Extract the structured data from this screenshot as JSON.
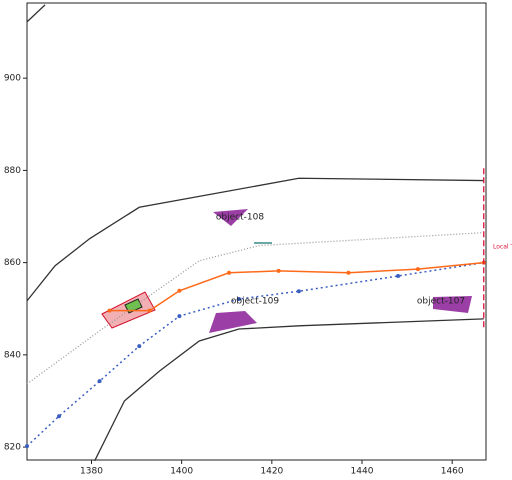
{
  "chart_data": {
    "type": "line",
    "xlim": [
      1365.7,
      1467.5
    ],
    "ylim": [
      817.2,
      916.3
    ],
    "xticks": [
      1380,
      1400,
      1420,
      1440,
      1460
    ],
    "yticks": [
      820,
      840,
      860,
      880,
      900
    ],
    "annotations": [
      "object-108",
      "object-109",
      "object-107",
      "Local T"
    ],
    "series": [
      {
        "color": "#333333",
        "dash": "none",
        "marker": false,
        "x": [
          1365.7,
          1369.7
        ],
        "values": [
          912.2,
          915.9
        ]
      },
      {
        "color": "#333333",
        "dash": "none",
        "marker": false,
        "x": [
          1365.7,
          1371.9,
          1379.6,
          1390.6,
          1426.0,
          1467.0
        ],
        "values": [
          851.7,
          859.3,
          865.2,
          872.0,
          878.3,
          877.8
        ]
      },
      {
        "color": "#333333",
        "dash": "none",
        "marker": false,
        "x": [
          1380.7,
          1387.3,
          1395.1,
          1403.9,
          1412.7,
          1426.0,
          1467.0
        ],
        "values": [
          817.0,
          830.0,
          836.5,
          843.0,
          845.6,
          846.3,
          847.8
        ]
      },
      {
        "color": "#999999",
        "dash": "1,2",
        "marker": false,
        "x": [
          1365.7,
          1381.8,
          1403.9,
          1417.2,
          1467.0
        ],
        "values": [
          833.7,
          845.2,
          860.4,
          863.7,
          866.5
        ]
      },
      {
        "color": "#3b5fc0",
        "dash": "2,3",
        "marker": true,
        "x": [
          1365.7,
          1372.8,
          1381.8,
          1390.6,
          1399.5,
          1412.7,
          1426.0,
          1448.0,
          1467.0
        ],
        "values": [
          820.2,
          826.7,
          834.3,
          841.9,
          848.4,
          852.1,
          853.8,
          857.1,
          860.0
        ]
      },
      {
        "color": "#ff6a1a",
        "dash": "none",
        "marker": true,
        "x": [
          1384.0,
          1392.9,
          1399.5,
          1410.5,
          1421.5,
          1437.0,
          1452.4,
          1467.0
        ],
        "values": [
          849.6,
          849.6,
          853.9,
          857.8,
          858.2,
          857.8,
          858.6,
          860.0
        ]
      },
      {
        "color": "#e0103a",
        "dash": "6,3",
        "marker": false,
        "x": [
          1467.0,
          1467.0
        ],
        "values": [
          846.0,
          881.0
        ]
      }
    ]
  }
}
